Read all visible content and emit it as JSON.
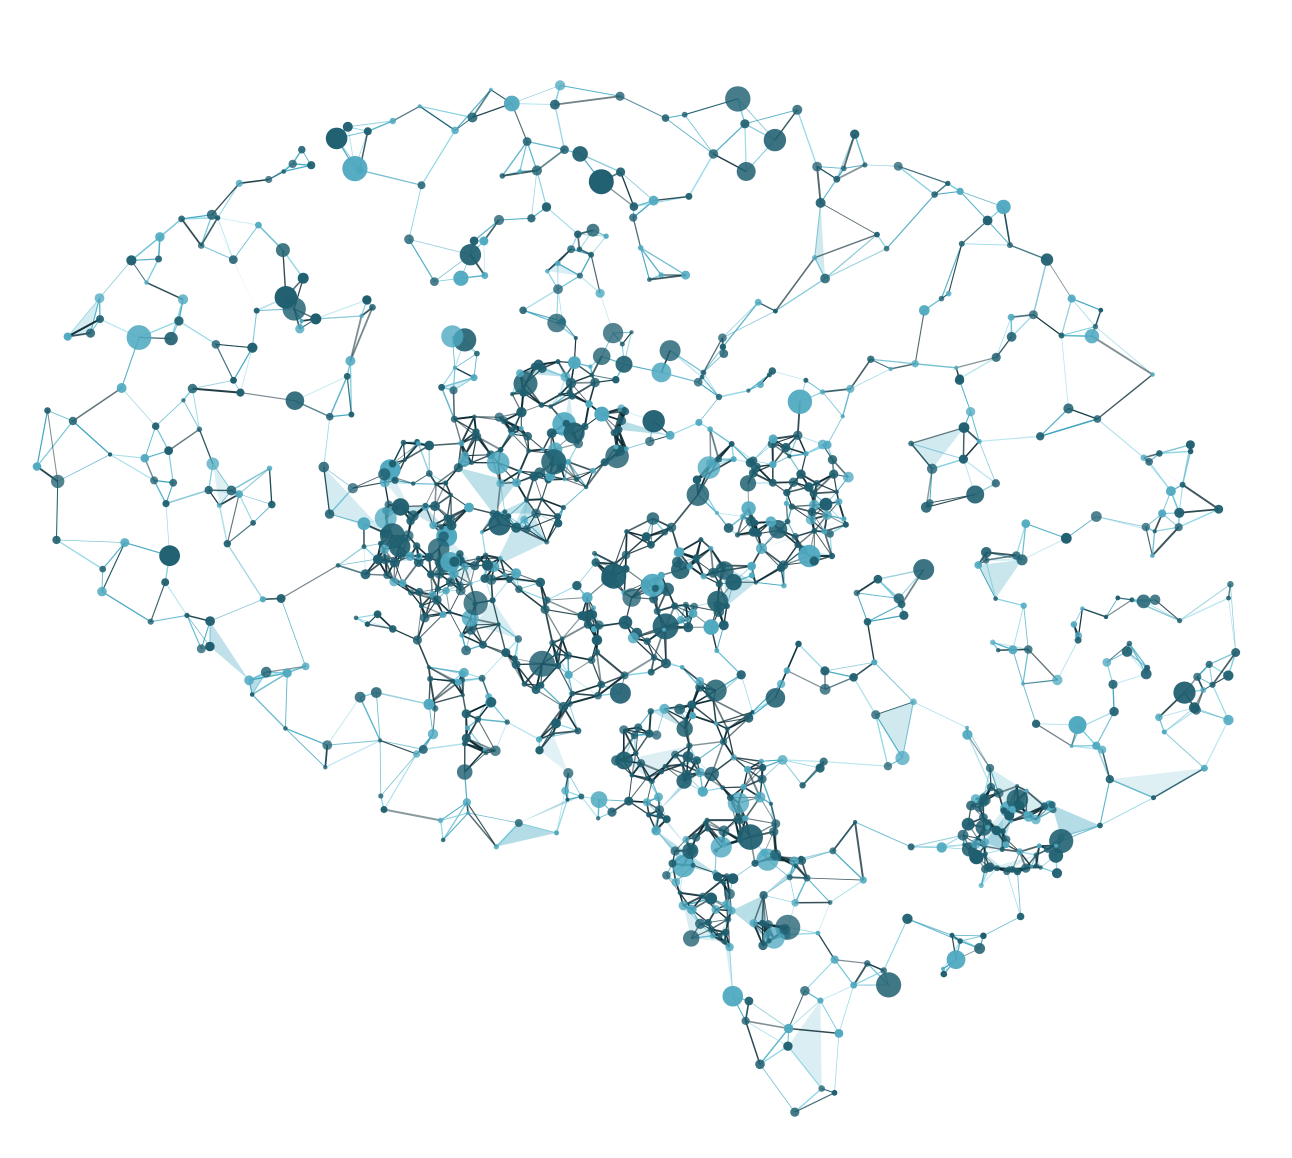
{
  "image": {
    "subject": "brain-network-illustration",
    "background_color": "#ffffff",
    "colors": {
      "light_edge": "#7ccfe0",
      "mid_edge": "#3aa3bd",
      "dark_edge": "#0b2a33",
      "node_fill": "#1f5f70",
      "node_light": "#4fa9c0"
    }
  }
}
